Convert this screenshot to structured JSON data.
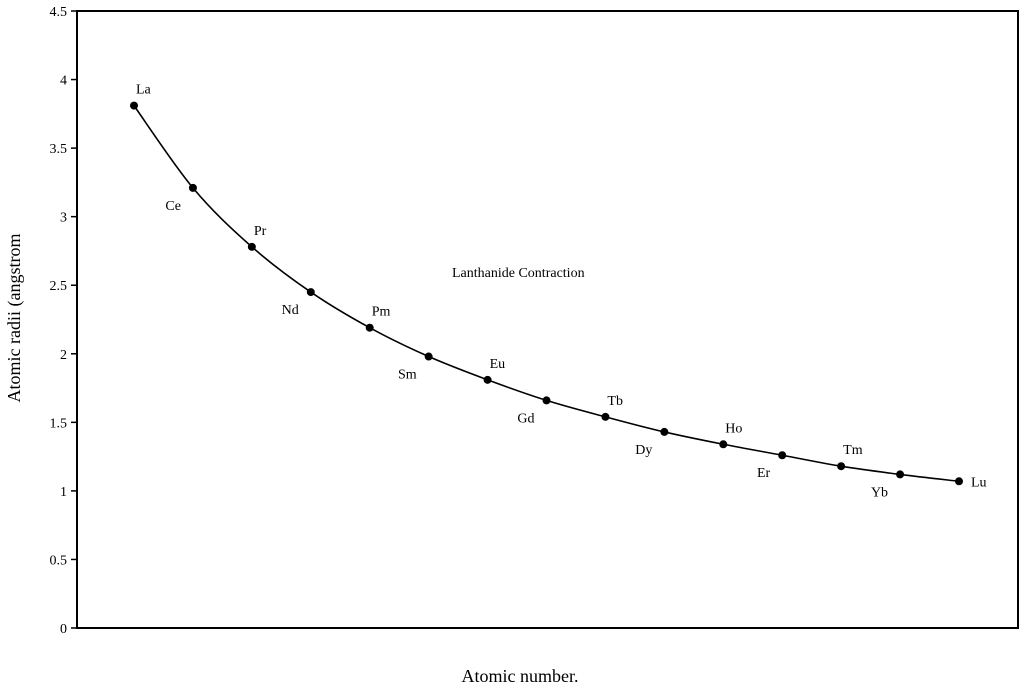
{
  "chart_data": {
    "type": "line",
    "title": "",
    "annotation": "Lanthanide Contraction",
    "xlabel": "Atomic number.",
    "ylabel": "Atomic radii (angstrom",
    "ylim": [
      0,
      4.5
    ],
    "yticks": [
      "0",
      "0.5",
      "1",
      "1.5",
      "2",
      "2.5",
      "3",
      "3.5",
      "4",
      "4.5"
    ],
    "grid": false,
    "legend": "none",
    "line_color": "#000000",
    "series": [
      {
        "categories": [
          "La",
          "Ce",
          "Pr",
          "Nd",
          "Pm",
          "Sm",
          "Eu",
          "Gd",
          "Tb",
          "Dy",
          "Ho",
          "Er",
          "Tm",
          "Yb",
          "Lu"
        ],
        "values": [
          3.81,
          3.21,
          2.78,
          2.45,
          2.19,
          1.98,
          1.81,
          1.66,
          1.54,
          1.43,
          1.34,
          1.26,
          1.18,
          1.12,
          1.07
        ]
      }
    ]
  }
}
